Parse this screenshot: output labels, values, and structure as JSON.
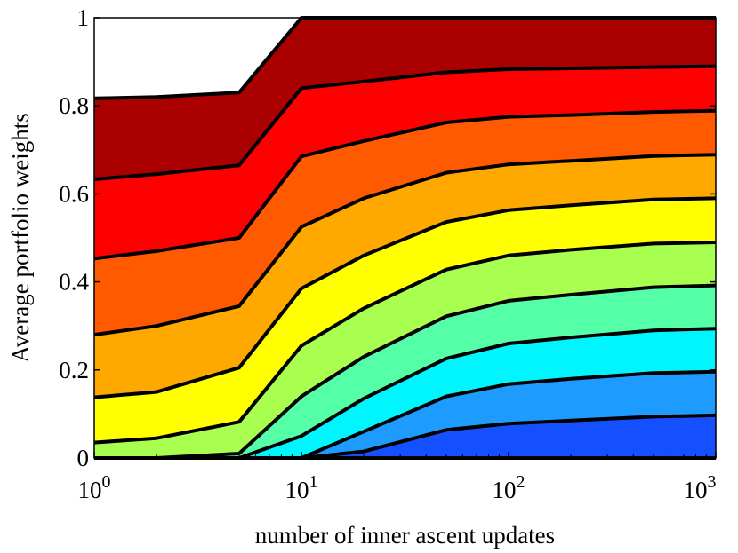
{
  "chart_data": {
    "type": "area",
    "stacked": true,
    "title": "",
    "xlabel": "number of inner ascent updates",
    "ylabel": "Average portfolio weights",
    "xscale": "log",
    "xlim": [
      1,
      1000
    ],
    "ylim": [
      0,
      1
    ],
    "x": [
      1,
      2,
      5,
      10,
      20,
      50,
      100,
      200,
      500,
      1000
    ],
    "x_ticks": [
      {
        "base": "10",
        "exp": "0",
        "value": 1
      },
      {
        "base": "10",
        "exp": "1",
        "value": 10
      },
      {
        "base": "10",
        "exp": "2",
        "value": 100
      },
      {
        "base": "10",
        "exp": "3",
        "value": 1000
      }
    ],
    "y_ticks": [
      {
        "label": "0",
        "value": 0
      },
      {
        "label": "0.2",
        "value": 0.2
      },
      {
        "label": "0.4",
        "value": 0.4
      },
      {
        "label": "0.6",
        "value": 0.6
      },
      {
        "label": "0.8",
        "value": 0.8
      },
      {
        "label": "1",
        "value": 1
      }
    ],
    "grid": false,
    "legend": "none",
    "boundaries": [
      {
        "color": "#1450ff",
        "values": [
          0,
          0,
          0,
          0,
          0.015,
          0.064,
          0.078,
          0.085,
          0.094,
          0.097
        ]
      },
      {
        "color": "#1e9bff",
        "values": [
          0,
          0,
          0,
          0,
          0.06,
          0.14,
          0.168,
          0.18,
          0.193,
          0.196
        ]
      },
      {
        "color": "#00f5ff",
        "values": [
          0,
          0,
          0,
          0.05,
          0.135,
          0.226,
          0.26,
          0.274,
          0.29,
          0.294
        ]
      },
      {
        "color": "#55ffa8",
        "values": [
          0,
          0,
          0.01,
          0.14,
          0.23,
          0.322,
          0.357,
          0.371,
          0.388,
          0.392
        ]
      },
      {
        "color": "#a8ff50",
        "values": [
          0.035,
          0.045,
          0.082,
          0.255,
          0.34,
          0.428,
          0.46,
          0.473,
          0.487,
          0.49
        ]
      },
      {
        "color": "#ffff00",
        "values": [
          0.138,
          0.15,
          0.205,
          0.385,
          0.46,
          0.536,
          0.563,
          0.574,
          0.587,
          0.59
        ]
      },
      {
        "color": "#ffa800",
        "values": [
          0.28,
          0.3,
          0.345,
          0.525,
          0.59,
          0.648,
          0.667,
          0.675,
          0.686,
          0.689
        ]
      },
      {
        "color": "#ff5a00",
        "values": [
          0.453,
          0.47,
          0.5,
          0.685,
          0.72,
          0.762,
          0.775,
          0.779,
          0.786,
          0.789
        ]
      },
      {
        "color": "#ff0000",
        "values": [
          0.633,
          0.645,
          0.665,
          0.84,
          0.855,
          0.876,
          0.883,
          0.885,
          0.888,
          0.89
        ]
      },
      {
        "color": "#aa0000",
        "values": [
          0.817,
          0.82,
          0.83,
          1,
          1,
          1,
          1,
          1,
          1,
          1
        ]
      }
    ]
  }
}
